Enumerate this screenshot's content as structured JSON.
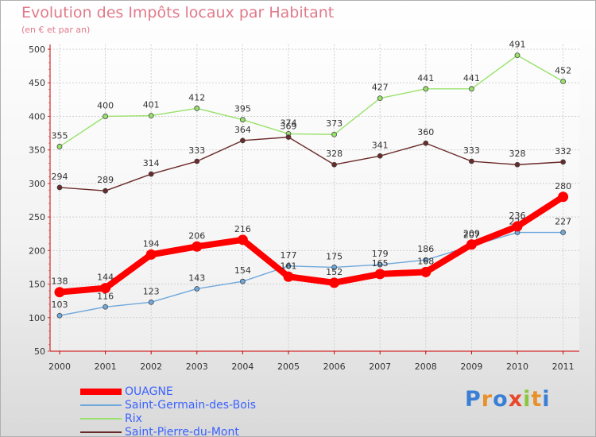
{
  "header": {
    "title": "Evolution des Impôts locaux par Habitant",
    "subtitle": "(en € et par an)"
  },
  "chart_data": {
    "type": "line",
    "x": [
      "2000",
      "2001",
      "2002",
      "2003",
      "2004",
      "2005",
      "2006",
      "2007",
      "2008",
      "2009",
      "2010",
      "2011"
    ],
    "ylim": [
      50,
      500
    ],
    "yticks": [
      50,
      100,
      150,
      200,
      250,
      300,
      350,
      400,
      450,
      500
    ],
    "grid": true,
    "legend_position": "bottom-left",
    "series": [
      {
        "name": "OUAGNE",
        "color": "#ff0000",
        "values": [
          138,
          144,
          194,
          206,
          216,
          161,
          152,
          165,
          168,
          209,
          236,
          280
        ]
      },
      {
        "name": "Saint-Germain-des-Bois",
        "color": "#6fa8dc",
        "values": [
          103,
          116,
          123,
          143,
          154,
          177,
          175,
          179,
          186,
          207,
          227,
          227
        ]
      },
      {
        "name": "Rix",
        "color": "#99e26b",
        "values": [
          355,
          400,
          401,
          412,
          395,
          374,
          373,
          427,
          441,
          441,
          491,
          452
        ]
      },
      {
        "name": "Saint-Pierre-du-Mont",
        "color": "#6b2a2a",
        "values": [
          294,
          289,
          314,
          333,
          364,
          369,
          328,
          341,
          360,
          333,
          328,
          332
        ]
      }
    ]
  },
  "logo": {
    "letters": [
      "P",
      "r",
      "o",
      "x",
      "i",
      "t",
      "i"
    ],
    "colors": [
      "#3a7fd5",
      "#e8912a",
      "#3a7fd5",
      "#e8472a",
      "#8cc63f",
      "#e8912a",
      "#3a7fd5"
    ]
  }
}
